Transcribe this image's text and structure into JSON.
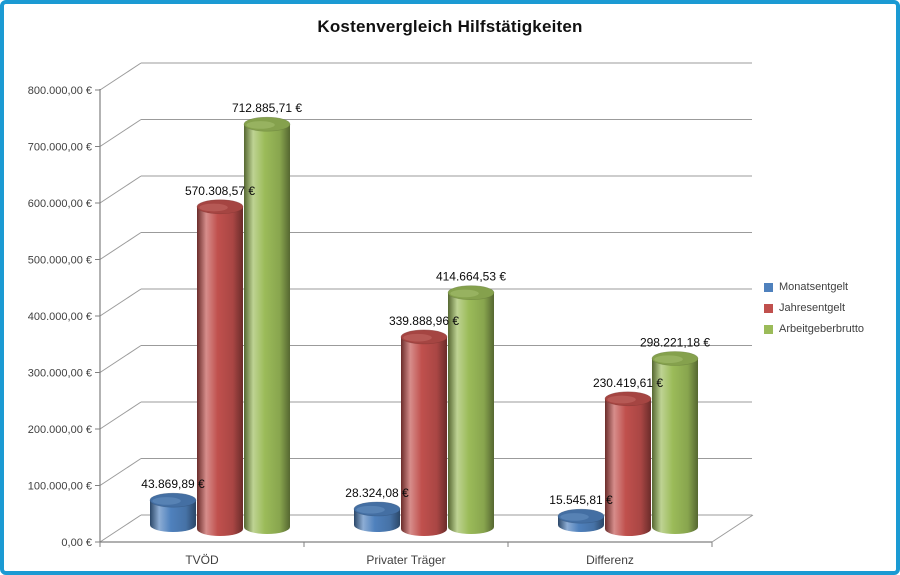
{
  "frame": {
    "border_color": "#1b9ad3",
    "background": "#ffffff"
  },
  "chart_data": {
    "type": "bar",
    "style": "3d-cylinder",
    "title": "Kostenvergleich Hilfstätigkeiten",
    "categories": [
      "TVÖD",
      "Privater Träger",
      "Differenz"
    ],
    "series": [
      {
        "name": "Monatsentgelt",
        "color": "#4F81BD",
        "values": [
          43869.89,
          28324.08,
          15545.81
        ],
        "labels": [
          "43.869,89 €",
          "28.324,08 €",
          "15.545,81 €"
        ]
      },
      {
        "name": "Jahresentgelt",
        "color": "#C0504D",
        "values": [
          570308.57,
          339888.96,
          230419.61
        ],
        "labels": [
          "570.308,57 €",
          "339.888,96 €",
          "230.419,61 €"
        ]
      },
      {
        "name": "Arbeitgeberbrutto",
        "color": "#9BBB59",
        "values": [
          712885.71,
          414664.53,
          298221.18
        ],
        "labels": [
          "712.885,71 €",
          "414.664,53 €",
          "298.221,18 €"
        ]
      }
    ],
    "ylim": [
      0,
      800000
    ],
    "ytick_step": 100000,
    "ytick_labels": [
      "0,00 €",
      "100.000,00 €",
      "200.000,00 €",
      "300.000,00 €",
      "400.000,00 €",
      "500.000,00 €",
      "600.000,00 €",
      "700.000,00 €",
      "800.000,00 €"
    ],
    "grid": true,
    "legend_position": "right",
    "axis_text_color": "#3f3f3f",
    "data_label_color": "#0a0a0a",
    "gridline_color": "#9b9b9b"
  }
}
